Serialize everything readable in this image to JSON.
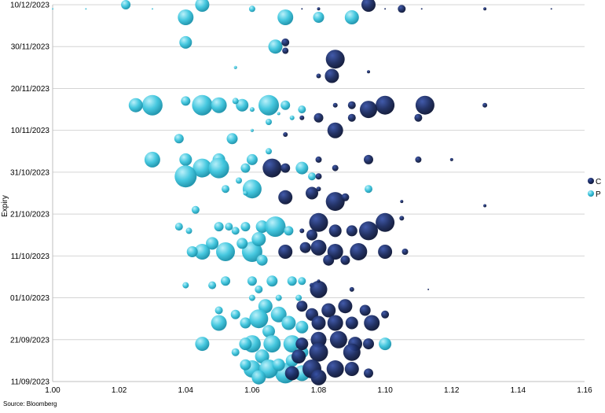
{
  "chart_data": {
    "type": "scatter",
    "subtype": "bubble",
    "xlabel": "",
    "ylabel": "Expiry",
    "xlim": [
      1.0,
      1.16
    ],
    "x_ticks": [
      "1.00",
      "1.02",
      "1.04",
      "1.06",
      "1.08",
      "1.10",
      "1.12",
      "1.14",
      "1.16"
    ],
    "y_ticks": [
      "10/12/2023",
      "30/11/2023",
      "20/11/2023",
      "10/11/2023",
      "31/10/2023",
      "21/10/2023",
      "11/10/2023",
      "01/10/2023",
      "21/09/2023",
      "11/09/2023"
    ],
    "ylim": [
      "2023-09-11",
      "2023-12-10"
    ],
    "grid": "horizontal",
    "legend_position": "right",
    "source": "Source: Bloomberg",
    "colors": {
      "C": "#1a2a5e",
      "P": "#3fc6de"
    },
    "series": [
      {
        "name": "C",
        "color": "#1a2a5e",
        "points": [
          {
            "x": 1.095,
            "y": "2023-12-10",
            "s": 9
          },
          {
            "x": 1.105,
            "y": "2023-12-09",
            "s": 5
          },
          {
            "x": 1.08,
            "y": "2023-12-09",
            "s": 2
          },
          {
            "x": 1.13,
            "y": "2023-12-09",
            "s": 2
          },
          {
            "x": 1.1,
            "y": "2023-12-09",
            "s": 1
          },
          {
            "x": 1.15,
            "y": "2023-12-09",
            "s": 1
          },
          {
            "x": 1.075,
            "y": "2023-12-09",
            "s": 1
          },
          {
            "x": 1.111,
            "y": "2023-12-09",
            "s": 1
          },
          {
            "x": 1.07,
            "y": "2023-12-01",
            "s": 5
          },
          {
            "x": 1.07,
            "y": "2023-11-29",
            "s": 4
          },
          {
            "x": 1.085,
            "y": "2023-11-27",
            "s": 12
          },
          {
            "x": 1.084,
            "y": "2023-11-23",
            "s": 9
          },
          {
            "x": 1.08,
            "y": "2023-11-23",
            "s": 3
          },
          {
            "x": 1.095,
            "y": "2023-11-24",
            "s": 2
          },
          {
            "x": 1.1,
            "y": "2023-11-16",
            "s": 12
          },
          {
            "x": 1.112,
            "y": "2023-11-16",
            "s": 12
          },
          {
            "x": 1.095,
            "y": "2023-11-15",
            "s": 11
          },
          {
            "x": 1.09,
            "y": "2023-11-16",
            "s": 5
          },
          {
            "x": 1.085,
            "y": "2023-11-16",
            "s": 3
          },
          {
            "x": 1.13,
            "y": "2023-11-16",
            "s": 3
          },
          {
            "x": 1.08,
            "y": "2023-11-13",
            "s": 6
          },
          {
            "x": 1.11,
            "y": "2023-11-13",
            "s": 5
          },
          {
            "x": 1.09,
            "y": "2023-11-13",
            "s": 5
          },
          {
            "x": 1.075,
            "y": "2023-11-13",
            "s": 3
          },
          {
            "x": 1.085,
            "y": "2023-11-10",
            "s": 10
          },
          {
            "x": 1.07,
            "y": "2023-11-09",
            "s": 3
          },
          {
            "x": 1.066,
            "y": "2023-11-01",
            "s": 12
          },
          {
            "x": 1.07,
            "y": "2023-11-01",
            "s": 6
          },
          {
            "x": 1.08,
            "y": "2023-11-03",
            "s": 4
          },
          {
            "x": 1.085,
            "y": "2023-11-01",
            "s": 4
          },
          {
            "x": 1.095,
            "y": "2023-11-03",
            "s": 6
          },
          {
            "x": 1.11,
            "y": "2023-11-03",
            "s": 4
          },
          {
            "x": 1.12,
            "y": "2023-11-03",
            "s": 2
          },
          {
            "x": 1.08,
            "y": "2023-10-30",
            "s": 4
          },
          {
            "x": 1.07,
            "y": "2023-10-25",
            "s": 9
          },
          {
            "x": 1.078,
            "y": "2023-10-26",
            "s": 8
          },
          {
            "x": 1.085,
            "y": "2023-10-24",
            "s": 12
          },
          {
            "x": 1.088,
            "y": "2023-10-25",
            "s": 5
          },
          {
            "x": 1.08,
            "y": "2023-10-27",
            "s": 3
          },
          {
            "x": 1.105,
            "y": "2023-10-24",
            "s": 2
          },
          {
            "x": 1.13,
            "y": "2023-10-23",
            "s": 2
          },
          {
            "x": 1.08,
            "y": "2023-10-19",
            "s": 12
          },
          {
            "x": 1.1,
            "y": "2023-10-19",
            "s": 12
          },
          {
            "x": 1.095,
            "y": "2023-10-17",
            "s": 12
          },
          {
            "x": 1.085,
            "y": "2023-10-17",
            "s": 8
          },
          {
            "x": 1.09,
            "y": "2023-10-17",
            "s": 7
          },
          {
            "x": 1.078,
            "y": "2023-10-16",
            "s": 7
          },
          {
            "x": 1.075,
            "y": "2023-10-17",
            "s": 3
          },
          {
            "x": 1.105,
            "y": "2023-10-20",
            "s": 3
          },
          {
            "x": 1.08,
            "y": "2023-10-13",
            "s": 10
          },
          {
            "x": 1.092,
            "y": "2023-10-12",
            "s": 11
          },
          {
            "x": 1.1,
            "y": "2023-10-12",
            "s": 9
          },
          {
            "x": 1.085,
            "y": "2023-10-12",
            "s": 10
          },
          {
            "x": 1.07,
            "y": "2023-10-12",
            "s": 9
          },
          {
            "x": 1.076,
            "y": "2023-10-13",
            "s": 7
          },
          {
            "x": 1.106,
            "y": "2023-10-12",
            "s": 4
          },
          {
            "x": 1.083,
            "y": "2023-10-10",
            "s": 7
          },
          {
            "x": 1.088,
            "y": "2023-10-10",
            "s": 6
          },
          {
            "x": 1.078,
            "y": "2023-10-04",
            "s": 3
          },
          {
            "x": 1.08,
            "y": "2023-10-03",
            "s": 11
          },
          {
            "x": 1.09,
            "y": "2023-10-03",
            "s": 3
          },
          {
            "x": 1.113,
            "y": "2023-10-03",
            "s": 1
          },
          {
            "x": 1.08,
            "y": "2023-10-05",
            "s": 2
          },
          {
            "x": 1.075,
            "y": "2023-09-29",
            "s": 7
          },
          {
            "x": 1.078,
            "y": "2023-09-27",
            "s": 8
          },
          {
            "x": 1.083,
            "y": "2023-09-28",
            "s": 9
          },
          {
            "x": 1.088,
            "y": "2023-09-29",
            "s": 9
          },
          {
            "x": 1.094,
            "y": "2023-09-28",
            "s": 7
          },
          {
            "x": 1.096,
            "y": "2023-09-25",
            "s": 10
          },
          {
            "x": 1.085,
            "y": "2023-09-25",
            "s": 10
          },
          {
            "x": 1.08,
            "y": "2023-09-25",
            "s": 9
          },
          {
            "x": 1.09,
            "y": "2023-09-25",
            "s": 8
          },
          {
            "x": 1.1,
            "y": "2023-09-27",
            "s": 5
          },
          {
            "x": 1.08,
            "y": "2023-09-21",
            "s": 10
          },
          {
            "x": 1.086,
            "y": "2023-09-21",
            "s": 11
          },
          {
            "x": 1.091,
            "y": "2023-09-20",
            "s": 9
          },
          {
            "x": 1.075,
            "y": "2023-09-20",
            "s": 8
          },
          {
            "x": 1.09,
            "y": "2023-09-18",
            "s": 11
          },
          {
            "x": 1.095,
            "y": "2023-09-20",
            "s": 7
          },
          {
            "x": 1.08,
            "y": "2023-09-18",
            "s": 12
          },
          {
            "x": 1.074,
            "y": "2023-09-17",
            "s": 9
          },
          {
            "x": 1.078,
            "y": "2023-09-14",
            "s": 12
          },
          {
            "x": 1.085,
            "y": "2023-09-14",
            "s": 11
          },
          {
            "x": 1.09,
            "y": "2023-09-14",
            "s": 9
          },
          {
            "x": 1.08,
            "y": "2023-09-12",
            "s": 10
          },
          {
            "x": 1.072,
            "y": "2023-09-13",
            "s": 9
          },
          {
            "x": 1.095,
            "y": "2023-09-13",
            "s": 6
          }
        ]
      },
      {
        "name": "P",
        "color": "#3fc6de",
        "points": [
          {
            "x": 1.045,
            "y": "2023-12-10",
            "s": 9
          },
          {
            "x": 1.022,
            "y": "2023-12-10",
            "s": 6
          },
          {
            "x": 1.0,
            "y": "2023-12-09",
            "s": 1
          },
          {
            "x": 1.01,
            "y": "2023-12-09",
            "s": 1
          },
          {
            "x": 1.03,
            "y": "2023-12-09",
            "s": 1
          },
          {
            "x": 1.06,
            "y": "2023-12-09",
            "s": 4
          },
          {
            "x": 1.04,
            "y": "2023-12-07",
            "s": 10
          },
          {
            "x": 1.07,
            "y": "2023-12-07",
            "s": 10
          },
          {
            "x": 1.08,
            "y": "2023-12-07",
            "s": 7
          },
          {
            "x": 1.09,
            "y": "2023-12-07",
            "s": 9
          },
          {
            "x": 1.04,
            "y": "2023-12-01",
            "s": 8
          },
          {
            "x": 1.067,
            "y": "2023-11-30",
            "s": 9
          },
          {
            "x": 1.055,
            "y": "2023-11-25",
            "s": 2
          },
          {
            "x": 1.03,
            "y": "2023-11-16",
            "s": 13
          },
          {
            "x": 1.045,
            "y": "2023-11-16",
            "s": 13
          },
          {
            "x": 1.065,
            "y": "2023-11-16",
            "s": 13
          },
          {
            "x": 1.025,
            "y": "2023-11-16",
            "s": 9
          },
          {
            "x": 1.05,
            "y": "2023-11-16",
            "s": 10
          },
          {
            "x": 1.057,
            "y": "2023-11-16",
            "s": 8
          },
          {
            "x": 1.04,
            "y": "2023-11-17",
            "s": 6
          },
          {
            "x": 1.07,
            "y": "2023-11-16",
            "s": 6
          },
          {
            "x": 1.075,
            "y": "2023-11-15",
            "s": 5
          },
          {
            "x": 1.055,
            "y": "2023-11-17",
            "s": 4
          },
          {
            "x": 1.06,
            "y": "2023-11-15",
            "s": 3
          },
          {
            "x": 1.068,
            "y": "2023-11-14",
            "s": 2
          },
          {
            "x": 1.065,
            "y": "2023-11-12",
            "s": 4
          },
          {
            "x": 1.072,
            "y": "2023-11-13",
            "s": 3
          },
          {
            "x": 1.06,
            "y": "2023-11-10",
            "s": 2
          },
          {
            "x": 1.038,
            "y": "2023-11-08",
            "s": 6
          },
          {
            "x": 1.054,
            "y": "2023-11-08",
            "s": 7
          },
          {
            "x": 1.03,
            "y": "2023-11-03",
            "s": 10
          },
          {
            "x": 1.04,
            "y": "2023-11-03",
            "s": 8
          },
          {
            "x": 1.05,
            "y": "2023-11-03",
            "s": 8
          },
          {
            "x": 1.06,
            "y": "2023-11-03",
            "s": 7
          },
          {
            "x": 1.065,
            "y": "2023-11-05",
            "s": 4
          },
          {
            "x": 1.045,
            "y": "2023-11-01",
            "s": 12
          },
          {
            "x": 1.05,
            "y": "2023-11-01",
            "s": 13
          },
          {
            "x": 1.058,
            "y": "2023-11-01",
            "s": 6
          },
          {
            "x": 1.075,
            "y": "2023-11-01",
            "s": 8
          },
          {
            "x": 1.04,
            "y": "2023-10-30",
            "s": 14
          },
          {
            "x": 1.056,
            "y": "2023-10-29",
            "s": 4
          },
          {
            "x": 1.06,
            "y": "2023-10-27",
            "s": 12
          },
          {
            "x": 1.052,
            "y": "2023-10-27",
            "s": 5
          },
          {
            "x": 1.095,
            "y": "2023-10-27",
            "s": 5
          },
          {
            "x": 1.078,
            "y": "2023-10-30",
            "s": 5
          },
          {
            "x": 1.058,
            "y": "2023-10-26",
            "s": 3
          },
          {
            "x": 1.043,
            "y": "2023-10-22",
            "s": 5
          },
          {
            "x": 1.038,
            "y": "2023-10-18",
            "s": 5
          },
          {
            "x": 1.041,
            "y": "2023-10-17",
            "s": 4
          },
          {
            "x": 1.05,
            "y": "2023-10-18",
            "s": 6
          },
          {
            "x": 1.053,
            "y": "2023-10-18",
            "s": 5
          },
          {
            "x": 1.055,
            "y": "2023-10-17",
            "s": 5
          },
          {
            "x": 1.058,
            "y": "2023-10-18",
            "s": 6
          },
          {
            "x": 1.063,
            "y": "2023-10-18",
            "s": 8
          },
          {
            "x": 1.067,
            "y": "2023-10-18",
            "s": 13
          },
          {
            "x": 1.071,
            "y": "2023-10-17",
            "s": 6
          },
          {
            "x": 1.045,
            "y": "2023-10-12",
            "s": 10
          },
          {
            "x": 1.052,
            "y": "2023-10-12",
            "s": 12
          },
          {
            "x": 1.06,
            "y": "2023-10-12",
            "s": 13
          },
          {
            "x": 1.062,
            "y": "2023-10-15",
            "s": 9
          },
          {
            "x": 1.048,
            "y": "2023-10-14",
            "s": 8
          },
          {
            "x": 1.057,
            "y": "2023-10-14",
            "s": 7
          },
          {
            "x": 1.063,
            "y": "2023-10-10",
            "s": 7
          },
          {
            "x": 1.042,
            "y": "2023-10-12",
            "s": 7
          },
          {
            "x": 1.04,
            "y": "2023-10-04",
            "s": 4
          },
          {
            "x": 1.048,
            "y": "2023-10-04",
            "s": 5
          },
          {
            "x": 1.052,
            "y": "2023-10-05",
            "s": 6
          },
          {
            "x": 1.06,
            "y": "2023-10-05",
            "s": 6
          },
          {
            "x": 1.066,
            "y": "2023-10-05",
            "s": 7
          },
          {
            "x": 1.062,
            "y": "2023-10-03",
            "s": 5
          },
          {
            "x": 1.072,
            "y": "2023-10-05",
            "s": 6
          },
          {
            "x": 1.075,
            "y": "2023-10-05",
            "s": 5
          },
          {
            "x": 1.06,
            "y": "2023-10-01",
            "s": 4
          },
          {
            "x": 1.068,
            "y": "2023-10-01",
            "s": 4
          },
          {
            "x": 1.074,
            "y": "2023-10-01",
            "s": 4
          },
          {
            "x": 1.064,
            "y": "2023-09-29",
            "s": 9
          },
          {
            "x": 1.068,
            "y": "2023-09-27",
            "s": 10
          },
          {
            "x": 1.058,
            "y": "2023-09-25",
            "s": 7
          },
          {
            "x": 1.05,
            "y": "2023-09-25",
            "s": 10
          },
          {
            "x": 1.062,
            "y": "2023-09-26",
            "s": 12
          },
          {
            "x": 1.071,
            "y": "2023-09-25",
            "s": 9
          },
          {
            "x": 1.075,
            "y": "2023-09-24",
            "s": 8
          },
          {
            "x": 1.05,
            "y": "2023-09-28",
            "s": 5
          },
          {
            "x": 1.055,
            "y": "2023-09-27",
            "s": 6
          },
          {
            "x": 1.065,
            "y": "2023-09-23",
            "s": 8
          },
          {
            "x": 1.045,
            "y": "2023-09-20",
            "s": 9
          },
          {
            "x": 1.06,
            "y": "2023-09-20",
            "s": 11
          },
          {
            "x": 1.066,
            "y": "2023-09-20",
            "s": 11
          },
          {
            "x": 1.072,
            "y": "2023-09-20",
            "s": 11
          },
          {
            "x": 1.075,
            "y": "2023-09-18",
            "s": 8
          },
          {
            "x": 1.063,
            "y": "2023-09-17",
            "s": 9
          },
          {
            "x": 1.058,
            "y": "2023-09-20",
            "s": 8
          },
          {
            "x": 1.055,
            "y": "2023-09-18",
            "s": 5
          },
          {
            "x": 1.1,
            "y": "2023-09-20",
            "s": 8
          },
          {
            "x": 1.06,
            "y": "2023-09-14",
            "s": 11
          },
          {
            "x": 1.07,
            "y": "2023-09-13",
            "s": 13
          },
          {
            "x": 1.065,
            "y": "2023-09-14",
            "s": 12
          },
          {
            "x": 1.075,
            "y": "2023-09-13",
            "s": 10
          },
          {
            "x": 1.062,
            "y": "2023-09-12",
            "s": 9
          },
          {
            "x": 1.068,
            "y": "2023-09-15",
            "s": 8
          },
          {
            "x": 1.058,
            "y": "2023-09-15",
            "s": 7
          },
          {
            "x": 1.072,
            "y": "2023-09-16",
            "s": 8
          }
        ]
      }
    ]
  }
}
